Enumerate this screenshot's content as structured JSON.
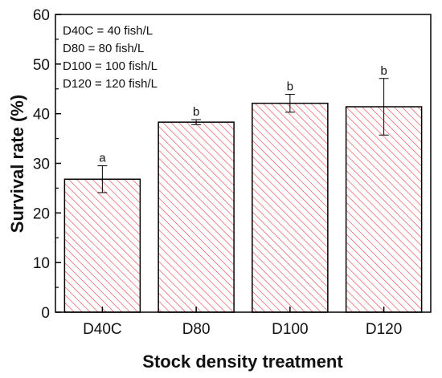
{
  "chart_data": {
    "type": "bar",
    "categories": [
      "D40C",
      "D80",
      "D100",
      "D120"
    ],
    "values": [
      26.8,
      38.3,
      42.1,
      41.4
    ],
    "errors": [
      2.7,
      0.5,
      1.8,
      5.7
    ],
    "significance": [
      "a",
      "b",
      "b",
      "b"
    ],
    "xlabel": "Stock density treatment",
    "ylabel": "Survival rate (%)",
    "ylim": [
      0,
      60
    ],
    "yticks": [
      "0",
      "10",
      "20",
      "30",
      "40",
      "50",
      "60"
    ],
    "legend": [
      "D40C = 40 fish/L",
      "D80 = 80 fish/L",
      "D100 = 100 fish/L",
      "D120 = 120 fish/L"
    ],
    "legend_position": "top-left",
    "grid": false,
    "bar_hatch_color": "#e8474f",
    "bar_edge_color": "#000000"
  }
}
